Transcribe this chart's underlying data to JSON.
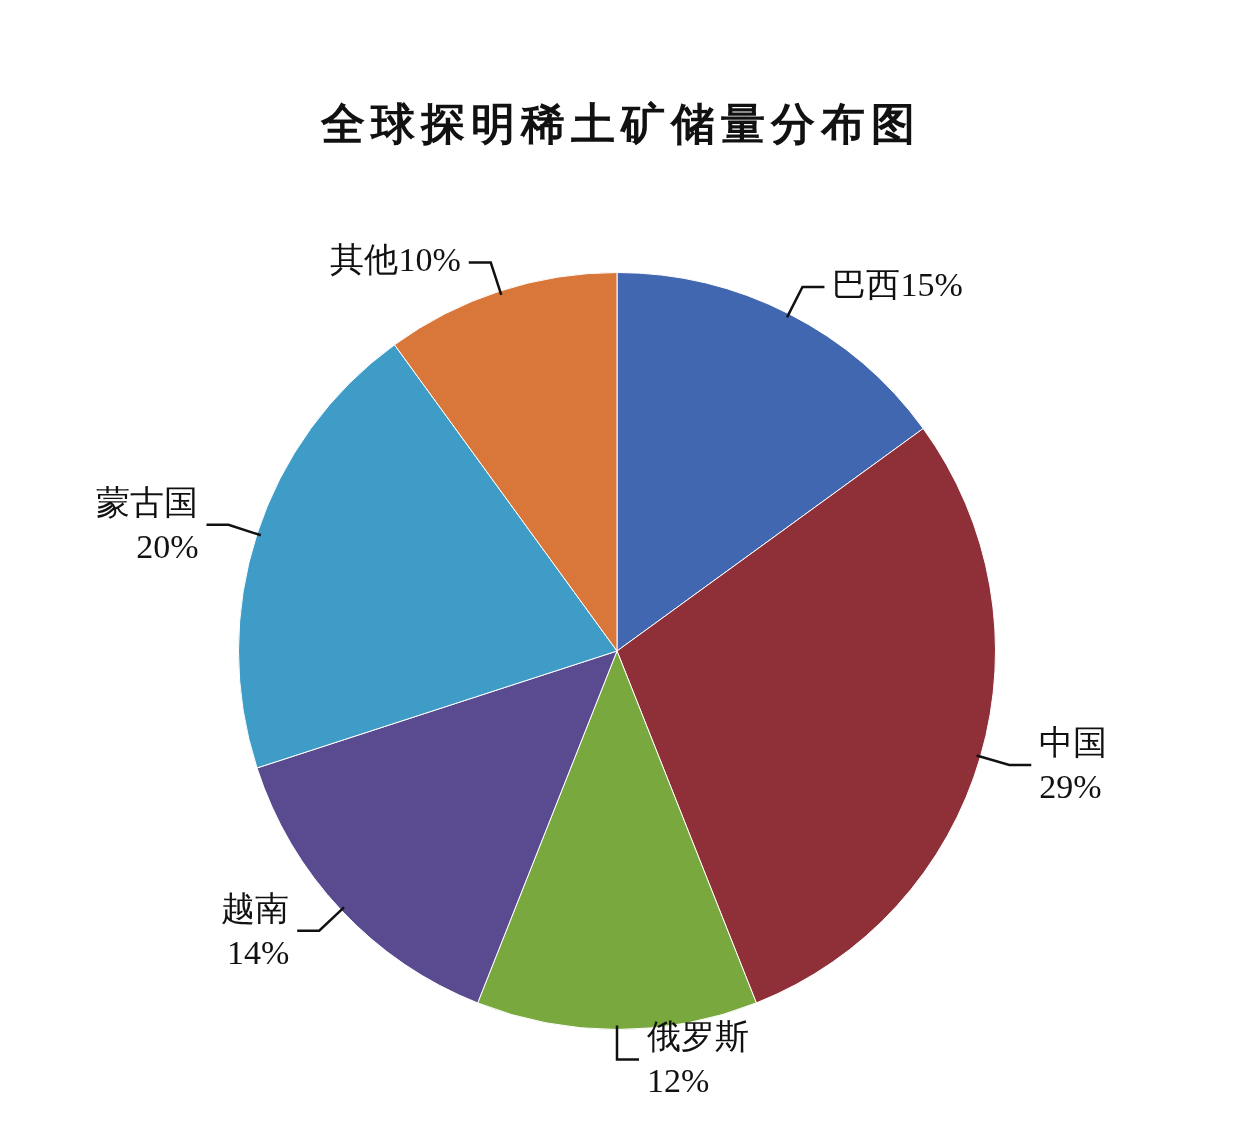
{
  "chart_data": {
    "type": "pie",
    "title": "全球探明稀土矿储量分布图",
    "categories": [
      "巴西",
      "中国",
      "俄罗斯",
      "越南",
      "蒙古国",
      "其他"
    ],
    "values": [
      15,
      29,
      12,
      14,
      20,
      10
    ],
    "value_labels": [
      "15%",
      "29%",
      "12%",
      "14%",
      "20%",
      "10%"
    ],
    "colors": [
      "#4167b0",
      "#8f3038",
      "#79a83e",
      "#5a4a8f",
      "#3e9cc7",
      "#d9773a"
    ],
    "legend": false
  }
}
